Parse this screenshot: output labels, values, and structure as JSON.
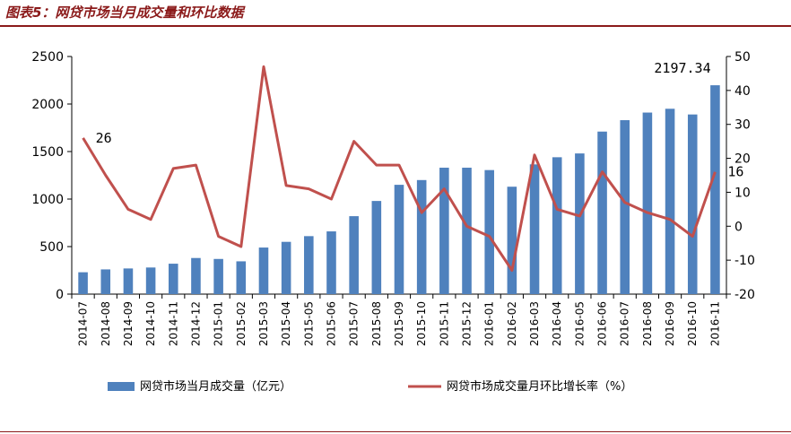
{
  "page": {
    "title": "图表5：网贷市场当月成交量和环比数据"
  },
  "chart_data": {
    "type": "bar+line",
    "categories": [
      "2014-07",
      "2014-08",
      "2014-09",
      "2014-10",
      "2014-11",
      "2014-12",
      "2015-01",
      "2015-02",
      "2015-03",
      "2015-04",
      "2015-05",
      "2015-06",
      "2015-07",
      "2015-08",
      "2015-09",
      "2015-10",
      "2015-11",
      "2015-12",
      "2016-01",
      "2016-02",
      "2016-03",
      "2016-04",
      "2016-05",
      "2016-06",
      "2016-07",
      "2016-08",
      "2016-09",
      "2016-10",
      "2016-11"
    ],
    "series": [
      {
        "name": "网贷市场当月成交量（亿元）",
        "type": "bar",
        "axis": "left",
        "color": "#4f81bd",
        "values": [
          230,
          260,
          270,
          280,
          320,
          380,
          370,
          345,
          490,
          550,
          610,
          660,
          820,
          980,
          1150,
          1200,
          1330,
          1330,
          1305,
          1130,
          1365,
          1440,
          1480,
          1710,
          1830,
          1910,
          1950,
          1890,
          2197.34
        ]
      },
      {
        "name": "网贷市场成交量月环比增长率（%）",
        "type": "line",
        "axis": "right",
        "color": "#c0504d",
        "values": [
          26,
          15,
          5,
          2,
          17,
          18,
          -3,
          -6,
          47,
          12,
          11,
          8,
          25,
          18,
          18,
          4,
          11,
          0,
          -3,
          -13,
          21,
          5,
          3,
          16,
          7,
          4,
          2,
          -3,
          16
        ]
      }
    ],
    "y_left": {
      "min": 0,
      "max": 2500,
      "ticks": [
        0,
        500,
        1000,
        1500,
        2000,
        2500
      ]
    },
    "y_right": {
      "min": -20,
      "max": 50,
      "ticks": [
        -20,
        -10,
        0,
        10,
        20,
        30,
        40,
        50
      ]
    },
    "annotations": [
      {
        "text": "26",
        "series": 1,
        "index": 0
      },
      {
        "text": "2197.34",
        "series": 0,
        "index": 28
      },
      {
        "text": "16",
        "series": 1,
        "index": 28
      }
    ],
    "legend_position": "bottom",
    "grid": false
  }
}
